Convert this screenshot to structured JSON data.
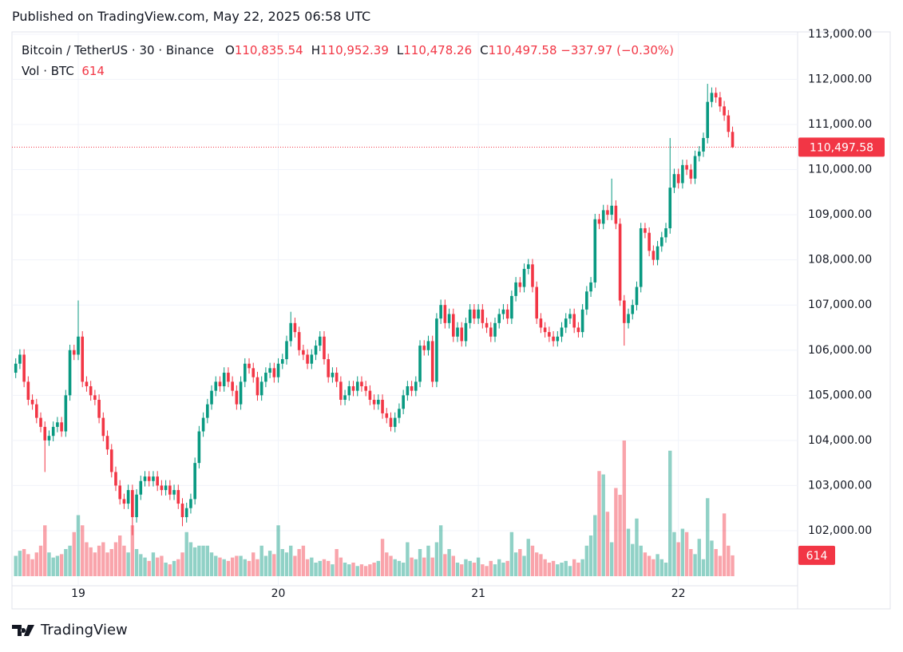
{
  "chart_data": {
    "type": "candlestick",
    "published": "Published on TradingView.com, May 22, 2025 06:58 UTC",
    "symbol": "Bitcoin / TetherUS · 30 · Binance",
    "legend": [
      {
        "key": "O",
        "text": "110,835.54"
      },
      {
        "key": "H",
        "text": "110,952.39"
      },
      {
        "key": "L",
        "text": "110,478.26"
      },
      {
        "key": "C",
        "text": "110,497.58"
      }
    ],
    "change": "−337.97 (−0.30%)",
    "volume_title": "Vol · BTC",
    "volume_text": "614",
    "last_price_label": "110,497.58",
    "last_volume_label": "614",
    "footer": "TradingView",
    "up_color": "#089981",
    "down_color": "#f23645",
    "grid": true,
    "categories": [
      null,
      null,
      null,
      null,
      null,
      null,
      null,
      null,
      null,
      null,
      null,
      null,
      null,
      null,
      null,
      "19",
      null,
      null,
      null,
      null,
      null,
      null,
      null,
      null,
      null,
      null,
      null,
      null,
      null,
      null,
      null,
      null,
      null,
      null,
      null,
      null,
      null,
      null,
      null,
      null,
      null,
      null,
      null,
      null,
      null,
      null,
      null,
      null,
      null,
      null,
      null,
      null,
      null,
      null,
      null,
      null,
      null,
      null,
      null,
      null,
      null,
      null,
      null,
      "20",
      null,
      null,
      null,
      null,
      null,
      null,
      null,
      null,
      null,
      null,
      null,
      null,
      null,
      null,
      null,
      null,
      null,
      null,
      null,
      null,
      null,
      null,
      null,
      null,
      null,
      null,
      null,
      null,
      null,
      null,
      null,
      null,
      null,
      null,
      null,
      null,
      null,
      null,
      null,
      null,
      null,
      null,
      null,
      null,
      null,
      null,
      null,
      "21",
      null,
      null,
      null,
      null,
      null,
      null,
      null,
      null,
      null,
      null,
      null,
      null,
      null,
      null,
      null,
      null,
      null,
      null,
      null,
      null,
      null,
      null,
      null,
      null,
      null,
      null,
      null,
      null,
      null,
      null,
      null,
      null,
      null,
      null,
      null,
      null,
      null,
      null,
      null,
      null,
      null,
      null,
      null,
      null,
      null,
      null,
      null,
      "22",
      null,
      null,
      null,
      null,
      null,
      null,
      null,
      null,
      null,
      null,
      null,
      null,
      null
    ],
    "open": [
      105500,
      105700,
      105900,
      105300,
      104900,
      104800,
      104500,
      104300,
      104000,
      104100,
      104300,
      104400,
      104200,
      105000,
      106000,
      105900,
      106300,
      105300,
      105200,
      105000,
      104900,
      104500,
      104100,
      103800,
      103300,
      103000,
      102700,
      102600,
      102900,
      102300,
      102800,
      103100,
      103200,
      103100,
      103200,
      103000,
      102900,
      103000,
      102800,
      102900,
      102600,
      102300,
      102500,
      102700,
      103500,
      104200,
      104500,
      104800,
      105100,
      105300,
      105200,
      105500,
      105300,
      105100,
      104800,
      105300,
      105700,
      105600,
      105400,
      105000,
      105300,
      105500,
      105600,
      105400,
      105700,
      105800,
      106200,
      106600,
      106400,
      106000,
      105900,
      105700,
      105900,
      106100,
      106300,
      105800,
      105400,
      105500,
      105300,
      104900,
      105000,
      105200,
      105100,
      105300,
      105200,
      105100,
      104900,
      104800,
      104900,
      104600,
      104500,
      104300,
      104500,
      104700,
      105000,
      105200,
      105100,
      105300,
      106100,
      106000,
      106200,
      105300,
      106700,
      107000,
      106600,
      106800,
      106300,
      106500,
      106200,
      106600,
      106900,
      106700,
      106900,
      106600,
      106500,
      106300,
      106600,
      106800,
      106900,
      106700,
      107200,
      107500,
      107400,
      107800,
      107900,
      107400,
      106700,
      106500,
      106400,
      106300,
      106200,
      106300,
      106500,
      106700,
      106800,
      106500,
      106400,
      106900,
      107300,
      107500,
      108900,
      108800,
      109100,
      109000,
      109200,
      108800,
      107100,
      106600,
      106800,
      107000,
      107400,
      108700,
      108600,
      108200,
      108000,
      108300,
      108500,
      108700,
      109600,
      109900,
      109700,
      110100,
      110000,
      109800,
      110300,
      110400,
      110700,
      111500,
      111700,
      111600,
      111400,
      111200,
      110835.54
    ],
    "high": [
      105820,
      106020,
      106020,
      105420,
      105020,
      104920,
      104620,
      104420,
      104220,
      104420,
      104520,
      104520,
      105120,
      106120,
      106120,
      107100,
      106420,
      105420,
      105320,
      105120,
      105020,
      104620,
      104220,
      103920,
      103420,
      103120,
      102820,
      103020,
      103020,
      102920,
      103220,
      103320,
      103320,
      103320,
      103320,
      103120,
      103120,
      103120,
      103020,
      103020,
      102720,
      102620,
      102820,
      103620,
      104320,
      104620,
      104920,
      105220,
      105420,
      105420,
      105620,
      105620,
      105420,
      105220,
      105420,
      105820,
      105820,
      105720,
      105520,
      105420,
      105620,
      105720,
      105720,
      105820,
      105920,
      106320,
      106850,
      106720,
      106520,
      106120,
      106020,
      106020,
      106220,
      106420,
      106420,
      105920,
      105620,
      105620,
      105420,
      105120,
      105320,
      105320,
      105420,
      105420,
      105320,
      105220,
      105020,
      105020,
      105020,
      104720,
      104620,
      104620,
      104820,
      105120,
      105320,
      105320,
      105420,
      106220,
      106220,
      106320,
      106320,
      106820,
      107120,
      107120,
      106920,
      106920,
      106620,
      106620,
      106720,
      107020,
      107020,
      107020,
      107020,
      106720,
      106620,
      106720,
      106920,
      107020,
      107020,
      107320,
      107620,
      107620,
      107920,
      108020,
      108020,
      107520,
      106820,
      106620,
      106520,
      106420,
      106420,
      106620,
      106820,
      106920,
      106920,
      106620,
      107020,
      107420,
      107620,
      109020,
      109020,
      109220,
      109220,
      109800,
      109320,
      108920,
      107220,
      106920,
      107120,
      107520,
      108820,
      108820,
      108720,
      108320,
      108420,
      108620,
      108820,
      110700,
      110020,
      110020,
      110220,
      110220,
      110120,
      110420,
      110520,
      110820,
      111900,
      111820,
      111820,
      111720,
      111520,
      111320,
      110952.39
    ],
    "low": [
      105380,
      105580,
      105180,
      104780,
      104680,
      104380,
      104180,
      103300,
      103880,
      103980,
      104180,
      104080,
      104080,
      104880,
      105780,
      105780,
      105180,
      105080,
      104880,
      104780,
      104380,
      103980,
      103680,
      103180,
      102880,
      102580,
      102480,
      102480,
      101900,
      102180,
      102680,
      102980,
      102980,
      102980,
      102880,
      102780,
      102780,
      102680,
      102680,
      102480,
      102100,
      102180,
      102380,
      102580,
      103380,
      104080,
      104380,
      104680,
      104980,
      105080,
      105080,
      105180,
      104980,
      104680,
      104680,
      105180,
      105480,
      105280,
      104880,
      104880,
      105180,
      105380,
      105280,
      105280,
      105580,
      105680,
      106080,
      106280,
      105880,
      105780,
      105580,
      105580,
      105780,
      105980,
      105680,
      105280,
      105280,
      105180,
      104780,
      104780,
      104880,
      104980,
      104980,
      105080,
      104980,
      104780,
      104680,
      104680,
      104480,
      104380,
      104200,
      104180,
      104380,
      104580,
      104880,
      104980,
      104980,
      105180,
      105880,
      105880,
      105180,
      105180,
      106580,
      106480,
      106480,
      106180,
      106180,
      106080,
      106080,
      106480,
      106580,
      106580,
      106480,
      106380,
      106180,
      106180,
      106480,
      106680,
      106580,
      106580,
      107080,
      107280,
      107280,
      107680,
      107280,
      106580,
      106380,
      106280,
      106180,
      106080,
      106080,
      106180,
      106380,
      106580,
      106380,
      106280,
      106280,
      106780,
      107180,
      107380,
      108680,
      108680,
      108880,
      108880,
      108680,
      106980,
      106100,
      106480,
      106680,
      106880,
      107280,
      108480,
      108080,
      107880,
      107880,
      108180,
      108380,
      108580,
      109480,
      109580,
      109580,
      109880,
      109680,
      109680,
      110180,
      110280,
      110580,
      111380,
      111480,
      111280,
      111080,
      110715,
      110478.26
    ],
    "close": [
      105700,
      105900,
      105300,
      104900,
      104800,
      104500,
      104300,
      104000,
      104100,
      104300,
      104400,
      104200,
      105000,
      106000,
      105900,
      106300,
      105300,
      105200,
      105000,
      104900,
      104500,
      104100,
      103800,
      103300,
      103000,
      102700,
      102600,
      102900,
      102300,
      102800,
      103100,
      103200,
      103100,
      103200,
      103000,
      102900,
      103000,
      102800,
      102900,
      102600,
      102300,
      102500,
      102700,
      103500,
      104200,
      104500,
      104800,
      105100,
      105300,
      105200,
      105500,
      105300,
      105100,
      104800,
      105300,
      105700,
      105600,
      105400,
      105000,
      105300,
      105500,
      105600,
      105400,
      105700,
      105800,
      106200,
      106600,
      106400,
      106000,
      105900,
      105700,
      105900,
      106100,
      106300,
      105800,
      105400,
      105500,
      105300,
      104900,
      105000,
      105200,
      105100,
      105300,
      105200,
      105100,
      104900,
      104800,
      104900,
      104600,
      104500,
      104300,
      104500,
      104700,
      105000,
      105200,
      105100,
      105300,
      106100,
      106000,
      106200,
      105300,
      106700,
      107000,
      106600,
      106800,
      106300,
      106500,
      106200,
      106600,
      106900,
      106700,
      106900,
      106600,
      106500,
      106300,
      106600,
      106800,
      106900,
      106700,
      107200,
      107500,
      107400,
      107800,
      107900,
      107400,
      106700,
      106500,
      106400,
      106300,
      106200,
      106300,
      106500,
      106700,
      106800,
      106500,
      106400,
      106900,
      107300,
      107500,
      108900,
      108800,
      109100,
      109000,
      109200,
      108800,
      107100,
      106600,
      106800,
      107000,
      107400,
      108700,
      108600,
      108200,
      108000,
      108300,
      108500,
      108700,
      109600,
      109900,
      109700,
      110100,
      110000,
      109800,
      110300,
      110400,
      110700,
      111500,
      111700,
      111600,
      111400,
      111200,
      110835.54,
      110497.58
    ],
    "volume": [
      600,
      750,
      800,
      650,
      500,
      700,
      900,
      1500,
      700,
      550,
      600,
      650,
      800,
      900,
      1300,
      1800,
      1500,
      1000,
      850,
      700,
      900,
      1000,
      700,
      800,
      1000,
      1200,
      900,
      700,
      1500,
      800,
      650,
      550,
      450,
      700,
      550,
      600,
      400,
      350,
      450,
      500,
      700,
      1300,
      1000,
      850,
      900,
      900,
      900,
      700,
      600,
      550,
      500,
      450,
      550,
      600,
      600,
      500,
      450,
      700,
      500,
      900,
      600,
      750,
      650,
      1500,
      800,
      700,
      900,
      600,
      800,
      900,
      500,
      550,
      400,
      450,
      500,
      450,
      350,
      800,
      550,
      400,
      350,
      400,
      300,
      350,
      300,
      350,
      400,
      450,
      1100,
      700,
      600,
      500,
      450,
      400,
      1000,
      550,
      500,
      800,
      550,
      900,
      550,
      1000,
      1500,
      650,
      800,
      600,
      400,
      350,
      500,
      450,
      400,
      550,
      350,
      300,
      450,
      350,
      500,
      400,
      450,
      1300,
      700,
      800,
      600,
      1100,
      900,
      700,
      650,
      500,
      400,
      450,
      350,
      400,
      450,
      300,
      500,
      400,
      500,
      900,
      1200,
      1800,
      3100,
      3000,
      1900,
      1000,
      2600,
      2400,
      4000,
      1400,
      950,
      1700,
      900,
      700,
      600,
      500,
      650,
      500,
      400,
      3700,
      1300,
      1000,
      1400,
      1300,
      800,
      650,
      1100,
      500,
      2300,
      1050,
      800,
      600,
      1850,
      900,
      614
    ],
    "ylim": [
      100780,
      113050
    ],
    "yticks": [
      {
        "value": 102000,
        "label": "102,000.00"
      },
      {
        "value": 103000,
        "label": "103,000.00"
      },
      {
        "value": 104000,
        "label": "104,000.00"
      },
      {
        "value": 105000,
        "label": "105,000.00"
      },
      {
        "value": 106000,
        "label": "106,000.00"
      },
      {
        "value": 107000,
        "label": "107,000.00"
      },
      {
        "value": 108000,
        "label": "108,000.00"
      },
      {
        "value": 109000,
        "label": "109,000.00"
      },
      {
        "value": 110000,
        "label": "110,000.00"
      },
      {
        "value": 111000,
        "label": "111,000.00"
      },
      {
        "value": 112000,
        "label": "112,000.00"
      },
      {
        "value": 113000,
        "label": "113,000.00"
      }
    ]
  }
}
